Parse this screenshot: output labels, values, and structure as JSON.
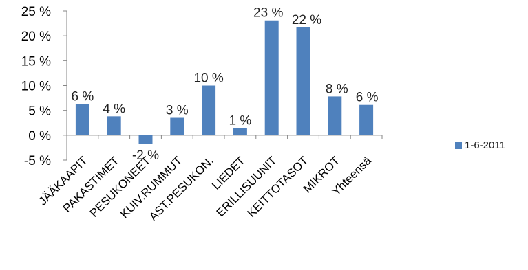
{
  "chart_data": {
    "type": "bar",
    "categories": [
      "JÄÄKAAPIT",
      "PAKASTIMET",
      "PESUKONEET",
      "KUIV.RUMMUT",
      "AST.PESUKON.",
      "LIEDET",
      "ERILLISUUNIT",
      "KEITTOTASOT",
      "MIKROT",
      "Yhteensä"
    ],
    "series": [
      {
        "name": "1-6-2011",
        "values": [
          6.3,
          3.8,
          -1.7,
          3.5,
          10.0,
          1.4,
          23.1,
          21.7,
          7.8,
          6.1
        ],
        "labels": [
          "6 %",
          "4 %",
          "-2 %",
          "3 %",
          "10 %",
          "1 %",
          "23 %",
          "22 %",
          "8 %",
          "6 %"
        ],
        "color": "#4f81bd"
      }
    ],
    "ylim": [
      -5,
      25
    ],
    "yticks": [
      -5,
      0,
      5,
      10,
      15,
      20,
      25
    ],
    "ytick_labels": [
      "-5 %",
      "0 %",
      "5 %",
      "10 %",
      "15 %",
      "20 %",
      "25 %"
    ],
    "grid": false,
    "legend_position": "right",
    "axis_color": "#868686"
  }
}
